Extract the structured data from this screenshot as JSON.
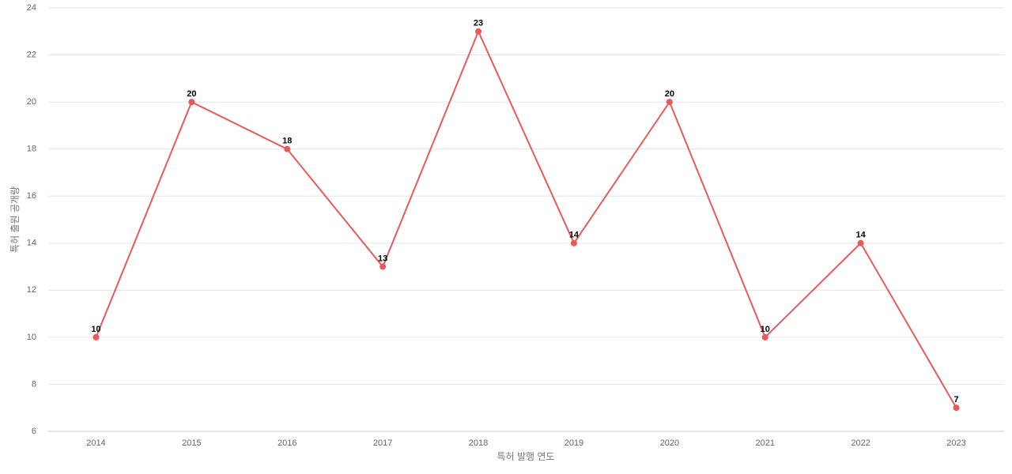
{
  "chart_data": {
    "type": "line",
    "x_label": "특허 발행 연도",
    "y_label": "특허 출원 공개량",
    "categories": [
      "2014",
      "2015",
      "2016",
      "2017",
      "2018",
      "2019",
      "2020",
      "2021",
      "2022",
      "2023"
    ],
    "series": [
      {
        "color": "#e85a5a",
        "values": [
          10,
          20,
          18,
          13,
          23,
          14,
          20,
          10,
          14,
          7
        ]
      }
    ],
    "ylim": [
      6,
      24
    ],
    "yticks": [
      6,
      8,
      10,
      12,
      14,
      16,
      18,
      20,
      22,
      24
    ],
    "grid": true
  }
}
